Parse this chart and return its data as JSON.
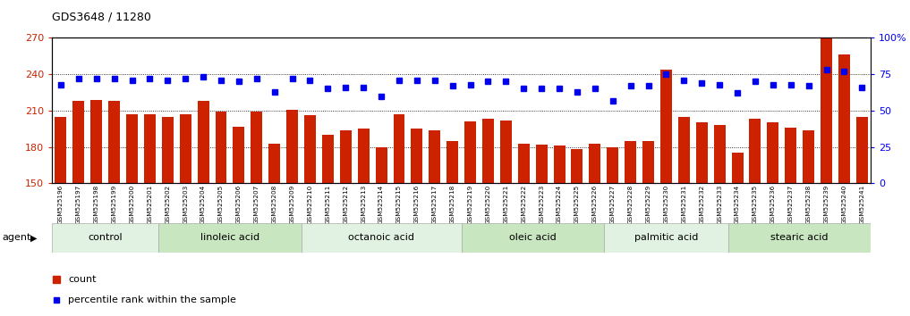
{
  "title": "GDS3648 / 11280",
  "samples": [
    "GSM525196",
    "GSM525197",
    "GSM525198",
    "GSM525199",
    "GSM525200",
    "GSM525201",
    "GSM525202",
    "GSM525203",
    "GSM525204",
    "GSM525205",
    "GSM525206",
    "GSM525207",
    "GSM525208",
    "GSM525209",
    "GSM525210",
    "GSM525211",
    "GSM525212",
    "GSM525213",
    "GSM525214",
    "GSM525215",
    "GSM525216",
    "GSM525217",
    "GSM525218",
    "GSM525219",
    "GSM525220",
    "GSM525221",
    "GSM525222",
    "GSM525223",
    "GSM525224",
    "GSM525225",
    "GSM525226",
    "GSM525227",
    "GSM525228",
    "GSM525229",
    "GSM525230",
    "GSM525231",
    "GSM525232",
    "GSM525233",
    "GSM525234",
    "GSM525235",
    "GSM525236",
    "GSM525237",
    "GSM525238",
    "GSM525239",
    "GSM525240",
    "GSM525241"
  ],
  "counts": [
    205,
    218,
    219,
    218,
    207,
    207,
    205,
    207,
    218,
    209,
    197,
    209,
    183,
    211,
    206,
    190,
    194,
    195,
    180,
    207,
    195,
    194,
    185,
    201,
    203,
    202,
    183,
    182,
    181,
    178,
    183,
    180,
    185,
    185,
    244,
    205,
    200,
    198,
    175,
    203,
    200,
    196,
    194,
    271,
    256,
    205
  ],
  "percentiles": [
    68,
    72,
    72,
    72,
    71,
    72,
    71,
    72,
    73,
    71,
    70,
    72,
    63,
    72,
    71,
    65,
    66,
    66,
    60,
    71,
    71,
    71,
    67,
    68,
    70,
    70,
    65,
    65,
    65,
    63,
    65,
    57,
    67,
    67,
    75,
    71,
    69,
    68,
    62,
    70,
    68,
    68,
    67,
    78,
    77,
    66
  ],
  "groups": [
    {
      "label": "control",
      "start": 0,
      "end": 6
    },
    {
      "label": "linoleic acid",
      "start": 6,
      "end": 14
    },
    {
      "label": "octanoic acid",
      "start": 14,
      "end": 23
    },
    {
      "label": "oleic acid",
      "start": 23,
      "end": 31
    },
    {
      "label": "palmitic acid",
      "start": 31,
      "end": 38
    },
    {
      "label": "stearic acid",
      "start": 38,
      "end": 46
    }
  ],
  "bar_color": "#cc2200",
  "dot_color": "#0000ee",
  "ylim_left": [
    150,
    270
  ],
  "ylim_right": [
    0,
    100
  ],
  "yticks_left": [
    150,
    180,
    210,
    240,
    270
  ],
  "yticks_right": [
    0,
    25,
    50,
    75,
    100
  ],
  "group_colors": [
    "#e8f5e9",
    "#dcedc8",
    "#e8f5e9",
    "#dcedc8",
    "#e8f5e9",
    "#dcedc8"
  ],
  "bar_width": 0.65
}
